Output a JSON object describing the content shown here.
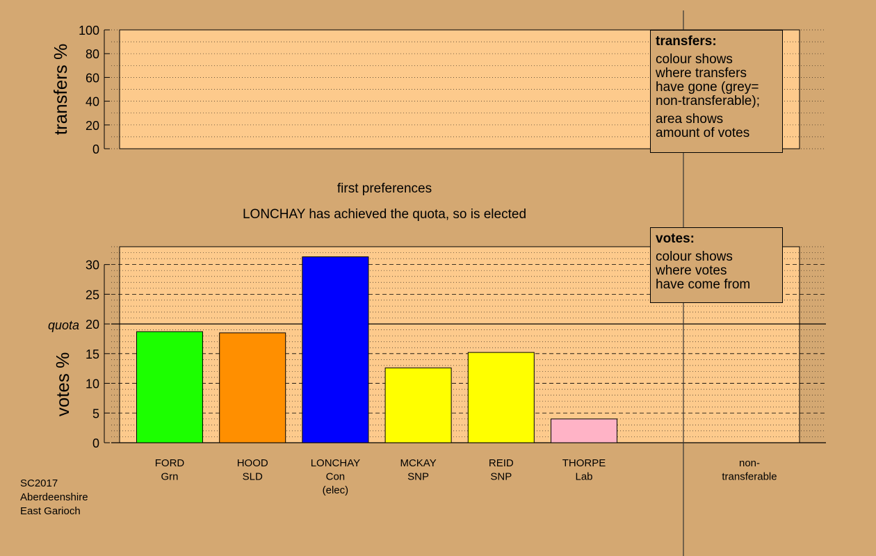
{
  "colors": {
    "background": "#d4a872",
    "panel": "#fdca8c",
    "FORD": "#1cff00",
    "HOOD": "#ff8f00",
    "LONCHAY": "#0000ff",
    "MCKAY": "#ffff00",
    "REID": "#ffff00",
    "THORPE": "#ffb3c6"
  },
  "center_text": {
    "stage": "first preferences",
    "status": "LONCHAY has achieved the quota, so is elected"
  },
  "transfers_legend": {
    "title": "transfers:",
    "lines1": [
      "colour shows",
      "where transfers",
      "have gone (grey=",
      "non-transferable);"
    ],
    "lines2": [
      "area shows",
      "amount of votes"
    ]
  },
  "votes_legend": {
    "title": "votes:",
    "lines": [
      "colour shows",
      "where votes",
      "have come from"
    ]
  },
  "footer": {
    "line1": "SC2017",
    "line2": "Aberdeenshire",
    "line3": "East Garioch"
  },
  "chart_data": [
    {
      "type": "bar",
      "ylabel": "transfers %",
      "ylim": [
        0,
        100
      ],
      "yticks": [
        0,
        20,
        40,
        60,
        80,
        100
      ],
      "values": []
    },
    {
      "type": "bar",
      "ylabel": "votes %",
      "ylim": [
        0,
        33
      ],
      "yticks": [
        0,
        5,
        10,
        15,
        20,
        25,
        30
      ],
      "quota": 20,
      "quota_label": "quota",
      "categories": [
        "FORD",
        "HOOD",
        "LONCHAY",
        "MCKAY",
        "REID",
        "THORPE"
      ],
      "category_labels": [
        [
          "FORD",
          "Grn"
        ],
        [
          "HOOD",
          "SLD"
        ],
        [
          "LONCHAY",
          "Con",
          "(elec)"
        ],
        [
          "MCKAY",
          "SNP"
        ],
        [
          "REID",
          "SNP"
        ],
        [
          "THORPE",
          "Lab"
        ]
      ],
      "values": [
        18.7,
        18.5,
        31.3,
        12.6,
        15.2,
        4.0
      ],
      "extra_category": [
        "non-",
        "transferable"
      ],
      "extra_value": 0
    }
  ]
}
